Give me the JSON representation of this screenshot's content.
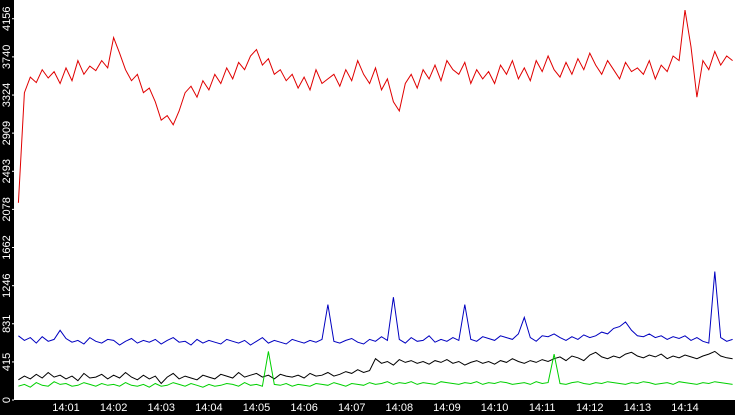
{
  "chart_data": {
    "type": "line",
    "categories": [
      null,
      null,
      null,
      null,
      null,
      null,
      null,
      null,
      "14:01",
      null,
      null,
      null,
      null,
      null,
      null,
      null,
      "14:02",
      null,
      null,
      null,
      null,
      null,
      null,
      null,
      "14:03",
      null,
      null,
      null,
      null,
      null,
      null,
      null,
      "14:04",
      null,
      null,
      null,
      null,
      null,
      null,
      null,
      "14:05",
      null,
      null,
      null,
      null,
      null,
      null,
      null,
      "14:06",
      null,
      null,
      null,
      null,
      null,
      null,
      null,
      "14:07",
      null,
      null,
      null,
      null,
      null,
      null,
      null,
      "14:08",
      null,
      null,
      null,
      null,
      null,
      null,
      null,
      "14:09",
      null,
      null,
      null,
      null,
      null,
      null,
      null,
      "14:10",
      null,
      null,
      null,
      null,
      null,
      null,
      null,
      "14:11",
      null,
      null,
      null,
      null,
      null,
      null,
      null,
      "14:12",
      null,
      null,
      null,
      null,
      null,
      null,
      null,
      "14:13",
      null,
      null,
      null,
      null,
      null,
      null,
      null,
      "14:14",
      null,
      null,
      null,
      null,
      null,
      null,
      null,
      null
    ],
    "series": [
      {
        "color": "#e00000",
        "values": [
          2150,
          3350,
          3520,
          3460,
          3600,
          3510,
          3580,
          3450,
          3620,
          3480,
          3700,
          3550,
          3640,
          3590,
          3700,
          3620,
          3950,
          3780,
          3600,
          3480,
          3550,
          3350,
          3400,
          3250,
          3050,
          3100,
          3000,
          3150,
          3350,
          3420,
          3300,
          3480,
          3380,
          3550,
          3450,
          3620,
          3500,
          3680,
          3600,
          3750,
          3820,
          3650,
          3720,
          3550,
          3600,
          3480,
          3550,
          3400,
          3520,
          3380,
          3600,
          3450,
          3500,
          3550,
          3420,
          3600,
          3480,
          3700,
          3550,
          3450,
          3620,
          3380,
          3500,
          3250,
          3150,
          3450,
          3550,
          3400,
          3600,
          3500,
          3650,
          3480,
          3700,
          3600,
          3550,
          3680,
          3450,
          3600,
          3500,
          3580,
          3450,
          3650,
          3550,
          3700,
          3500,
          3620,
          3480,
          3700,
          3580,
          3750,
          3600,
          3520,
          3680,
          3550,
          3720,
          3600,
          3780,
          3650,
          3550,
          3700,
          3600,
          3500,
          3680,
          3580,
          3620,
          3550,
          3700,
          3500,
          3650,
          3580,
          3750,
          3700,
          4250,
          3850,
          3300,
          3700,
          3600,
          3800,
          3650,
          3750,
          3700
        ]
      },
      {
        "color": "#0000c0",
        "values": [
          700,
          650,
          680,
          620,
          690,
          640,
          660,
          760,
          670,
          630,
          650,
          610,
          680,
          640,
          620,
          660,
          650,
          600,
          640,
          670,
          620,
          650,
          630,
          660,
          610,
          650,
          680,
          630,
          640,
          600,
          660,
          620,
          650,
          630,
          610,
          660,
          640,
          620,
          650,
          600,
          640,
          680,
          620,
          650,
          630,
          610,
          660,
          640,
          620,
          650,
          630,
          660,
          1040,
          640,
          620,
          650,
          670,
          630,
          610,
          660,
          640,
          690,
          650,
          1120,
          660,
          620,
          680,
          640,
          650,
          700,
          630,
          660,
          640,
          680,
          650,
          1040,
          660,
          640,
          690,
          670,
          650,
          700,
          680,
          660,
          720,
          900,
          680,
          640,
          700,
          690,
          720,
          680,
          650,
          690,
          660,
          710,
          680,
          700,
          740,
          720,
          780,
          800,
          850,
          760,
          700,
          690,
          720,
          680,
          700,
          660,
          690,
          670,
          700,
          650,
          680,
          640,
          620,
          1400,
          680,
          640,
          660
        ]
      },
      {
        "color": "#000000",
        "values": [
          220,
          260,
          230,
          280,
          240,
          300,
          250,
          270,
          230,
          260,
          210,
          290,
          240,
          250,
          280,
          230,
          270,
          240,
          300,
          250,
          220,
          270,
          230,
          260,
          180,
          250,
          290,
          230,
          260,
          240,
          220,
          270,
          250,
          230,
          280,
          260,
          240,
          300,
          250,
          270,
          290,
          250,
          270,
          230,
          280,
          260,
          250,
          270,
          240,
          290,
          260,
          270,
          300,
          260,
          280,
          310,
          290,
          330,
          300,
          320,
          450,
          400,
          420,
          380,
          440,
          410,
          430,
          400,
          420,
          390,
          430,
          410,
          440,
          400,
          420,
          380,
          410,
          430,
          400,
          420,
          390,
          430,
          410,
          450,
          420,
          400,
          430,
          410,
          440,
          420,
          450,
          470,
          430,
          480,
          460,
          430,
          490,
          520,
          470,
          450,
          480,
          460,
          500,
          520,
          480,
          460,
          490,
          470,
          500,
          450,
          480,
          460,
          490,
          470,
          450,
          480,
          500,
          530,
          480,
          460,
          450
        ]
      },
      {
        "color": "#00d000",
        "values": [
          150,
          170,
          140,
          190,
          160,
          150,
          200,
          170,
          180,
          150,
          160,
          190,
          170,
          150,
          180,
          160,
          170,
          150,
          190,
          160,
          150,
          170,
          140,
          180,
          150,
          160,
          190,
          170,
          150,
          180,
          160,
          140,
          170,
          150,
          160,
          180,
          170,
          150,
          190,
          160,
          170,
          150,
          530,
          170,
          160,
          180,
          150,
          170,
          160,
          150,
          180,
          170,
          160,
          190,
          170,
          150,
          180,
          170,
          160,
          190,
          170,
          180,
          200,
          170,
          190,
          180,
          200,
          170,
          190,
          180,
          170,
          200,
          190,
          180,
          170,
          190,
          180,
          200,
          170,
          190,
          180,
          200,
          190,
          170,
          180,
          190,
          170,
          200,
          180,
          190,
          500,
          180,
          170,
          190,
          200,
          180,
          170,
          190,
          180,
          200,
          190,
          180,
          170,
          190,
          180,
          200,
          190,
          170,
          180,
          190,
          170,
          200,
          190,
          180,
          170,
          190,
          180,
          200,
          190,
          180,
          170
        ]
      }
    ],
    "ylim": [
      0,
      4360
    ],
    "yticks": [
      0,
      415,
      831,
      1246,
      1662,
      2078,
      2493,
      2909,
      3324,
      3740,
      4156
    ]
  }
}
